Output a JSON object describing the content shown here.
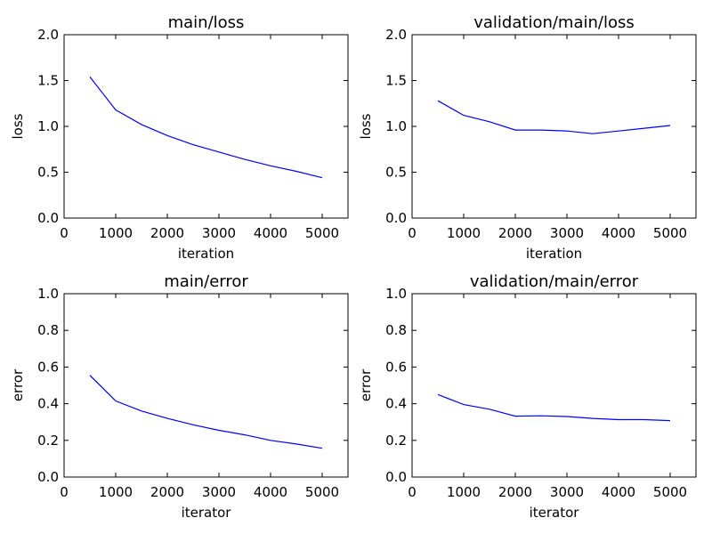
{
  "chart_data": [
    {
      "type": "line",
      "title": "main/loss",
      "xlabel": "iteration",
      "ylabel": "loss",
      "xlim": [
        0,
        5500
      ],
      "ylim": [
        0,
        2.0
      ],
      "xticks": [
        "0",
        "1000",
        "2000",
        "3000",
        "4000",
        "5000"
      ],
      "yticks": [
        "0.0",
        "0.5",
        "1.0",
        "1.5",
        "2.0"
      ],
      "grid": false,
      "series": [
        {
          "color": "#0000ff",
          "x": [
            500,
            1000,
            1500,
            2000,
            2500,
            3000,
            3500,
            4000,
            4500,
            5000
          ],
          "y": [
            1.54,
            1.18,
            1.02,
            0.9,
            0.8,
            0.72,
            0.64,
            0.57,
            0.51,
            0.44
          ]
        }
      ]
    },
    {
      "type": "line",
      "title": "validation/main/loss",
      "xlabel": "iteration",
      "ylabel": "loss",
      "xlim": [
        0,
        5500
      ],
      "ylim": [
        0,
        2.0
      ],
      "xticks": [
        "0",
        "1000",
        "2000",
        "3000",
        "4000",
        "5000"
      ],
      "yticks": [
        "0.0",
        "0.5",
        "1.0",
        "1.5",
        "2.0"
      ],
      "grid": false,
      "series": [
        {
          "color": "#0000ff",
          "x": [
            500,
            1000,
            1500,
            2000,
            2500,
            3000,
            3500,
            4000,
            4500,
            5000
          ],
          "y": [
            1.28,
            1.12,
            1.05,
            0.96,
            0.96,
            0.95,
            0.92,
            0.95,
            0.98,
            1.01
          ]
        }
      ]
    },
    {
      "type": "line",
      "title": "main/error",
      "xlabel": "iterator",
      "ylabel": "error",
      "xlim": [
        0,
        5500
      ],
      "ylim": [
        0,
        1.0
      ],
      "xticks": [
        "0",
        "1000",
        "2000",
        "3000",
        "4000",
        "5000"
      ],
      "yticks": [
        "0.0",
        "0.2",
        "0.4",
        "0.6",
        "0.8",
        "1.0"
      ],
      "grid": false,
      "series": [
        {
          "color": "#0000ff",
          "x": [
            500,
            1000,
            1500,
            2000,
            2500,
            3000,
            3500,
            4000,
            4500,
            5000
          ],
          "y": [
            0.555,
            0.415,
            0.36,
            0.32,
            0.285,
            0.255,
            0.23,
            0.2,
            0.18,
            0.157
          ]
        }
      ]
    },
    {
      "type": "line",
      "title": "validation/main/error",
      "xlabel": "iterator",
      "ylabel": "error",
      "xlim": [
        0,
        5500
      ],
      "ylim": [
        0,
        1.0
      ],
      "xticks": [
        "0",
        "1000",
        "2000",
        "3000",
        "4000",
        "5000"
      ],
      "yticks": [
        "0.0",
        "0.2",
        "0.4",
        "0.6",
        "0.8",
        "1.0"
      ],
      "grid": false,
      "series": [
        {
          "color": "#0000ff",
          "x": [
            500,
            1000,
            1500,
            2000,
            2500,
            3000,
            3500,
            4000,
            4500,
            5000
          ],
          "y": [
            0.45,
            0.395,
            0.37,
            0.332,
            0.334,
            0.33,
            0.32,
            0.313,
            0.313,
            0.308
          ]
        }
      ]
    }
  ]
}
